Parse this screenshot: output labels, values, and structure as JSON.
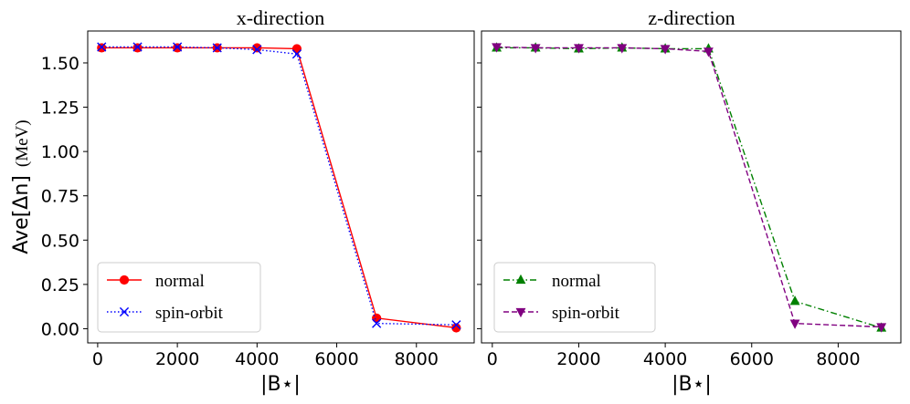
{
  "chart_data": [
    {
      "type": "line",
      "title": "x-direction",
      "xlabel": "|B⋆|",
      "ylabel_main": "Ave[Δn]",
      "ylabel_unit": "(MeV)",
      "xlim": [
        -250,
        9450
      ],
      "ylim": [
        -0.08,
        1.68
      ],
      "xticks": [
        0,
        2000,
        4000,
        6000,
        8000
      ],
      "yticks": [
        "0.00",
        "0.25",
        "0.50",
        "0.75",
        "1.00",
        "1.25",
        "1.50"
      ],
      "legend_position": "lower-left",
      "series": [
        {
          "name": "normal",
          "color": "#ff0000",
          "line_style": "solid",
          "marker": "circle",
          "x": [
            100,
            1000,
            2000,
            3000,
            4000,
            5000,
            7000,
            9000
          ],
          "y": [
            1.585,
            1.585,
            1.585,
            1.585,
            1.585,
            1.58,
            0.06,
            0.005
          ]
        },
        {
          "name": "spin-orbit",
          "color": "#0000ff",
          "line_style": "dotted",
          "marker": "x",
          "x": [
            100,
            1000,
            2000,
            3000,
            4000,
            5000,
            7000,
            9000
          ],
          "y": [
            1.59,
            1.59,
            1.59,
            1.585,
            1.575,
            1.55,
            0.03,
            0.022
          ]
        }
      ]
    },
    {
      "type": "line",
      "title": "z-direction",
      "xlabel": "|B⋆|",
      "xlim": [
        -250,
        9450
      ],
      "ylim": [
        -0.08,
        1.68
      ],
      "xticks": [
        0,
        2000,
        4000,
        6000,
        8000
      ],
      "legend_position": "lower-left",
      "series": [
        {
          "name": "normal",
          "color": "#008000",
          "line_style": "dashdot",
          "marker": "triangle-up",
          "x": [
            100,
            1000,
            2000,
            3000,
            4000,
            5000,
            7000,
            9000
          ],
          "y": [
            1.585,
            1.585,
            1.58,
            1.585,
            1.58,
            1.58,
            0.155,
            0.005
          ]
        },
        {
          "name": "spin-orbit",
          "color": "#800080",
          "line_style": "dashed",
          "marker": "triangle-down",
          "x": [
            100,
            1000,
            2000,
            3000,
            4000,
            5000,
            7000,
            9000
          ],
          "y": [
            1.59,
            1.585,
            1.585,
            1.585,
            1.58,
            1.565,
            0.03,
            0.01
          ]
        }
      ]
    }
  ]
}
